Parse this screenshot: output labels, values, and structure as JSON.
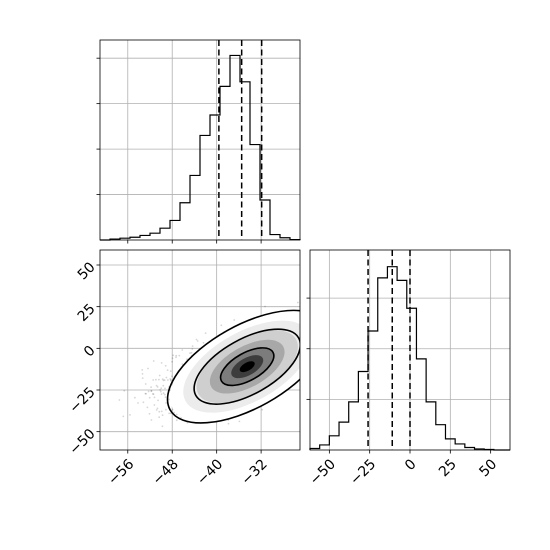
{
  "chart_data": {
    "type": "corner",
    "panels": [
      {
        "id": "hist-x",
        "type": "histogram",
        "xlim": [
          -61,
          -25
        ],
        "grid": true,
        "yticks": [
          1,
          2,
          3,
          4
        ],
        "ymax": 4.4,
        "tick_labels_shown": false,
        "bins": {
          "edges": [
            -61,
            -59.2,
            -57.4,
            -55.6,
            -53.8,
            -52,
            -50.2,
            -48.4,
            -46.6,
            -44.8,
            -43,
            -41.2,
            -39.4,
            -37.6,
            -35.8,
            -34,
            -32.2,
            -30.4,
            -28.6,
            -26.8,
            -25
          ],
          "counts": [
            0,
            0.02,
            0.04,
            0.06,
            0.1,
            0.15,
            0.26,
            0.43,
            0.82,
            1.42,
            2.3,
            2.75,
            3.38,
            4.06,
            3.48,
            2.1,
            0.88,
            0.12,
            0.05,
            0.01
          ]
        },
        "quantiles": [
          -39.6,
          -35.5,
          -31.9
        ]
      },
      {
        "id": "scatter-xy",
        "type": "scatter-contour",
        "xlim": [
          -61,
          -25
        ],
        "ylim": [
          -61,
          59
        ],
        "grid": true,
        "xticks": [
          -56,
          -48,
          -40,
          -32
        ],
        "xtick_labels": [
          "−56",
          "−48",
          "−40",
          "−32"
        ],
        "yticks": [
          50,
          25,
          0,
          -25,
          -50
        ],
        "ytick_labels": [
          "50",
          "25",
          "0",
          "−25",
          "−50"
        ],
        "center": [
          -34.5,
          -11
        ],
        "spread": [
          4.8,
          11.5
        ],
        "correlation": 0.55,
        "contour_levels": [
          "39.3%",
          "86.5%",
          "98.9%"
        ]
      },
      {
        "id": "hist-y",
        "type": "histogram",
        "xlim": [
          -62,
          62
        ],
        "grid": true,
        "xticks": [
          -50,
          -25,
          0,
          25,
          50
        ],
        "xtick_labels": [
          "−50",
          "−25",
          "0",
          "25",
          "50"
        ],
        "yticks": [
          1,
          2,
          3
        ],
        "ymax": 3.95,
        "bins": {
          "edges": [
            -62,
            -56,
            -50,
            -44,
            -38,
            -32,
            -26,
            -20,
            -14,
            -8,
            -2,
            4,
            10,
            16,
            22,
            28,
            34,
            40,
            46,
            52,
            58,
            62
          ],
          "counts": [
            0.03,
            0.1,
            0.28,
            0.55,
            0.95,
            1.55,
            2.35,
            3.4,
            3.62,
            3.35,
            2.8,
            1.8,
            0.95,
            0.5,
            0.22,
            0.12,
            0.05,
            0.02,
            0.01,
            0,
            0
          ]
        },
        "quantiles": [
          -26,
          -11,
          0
        ]
      }
    ]
  }
}
